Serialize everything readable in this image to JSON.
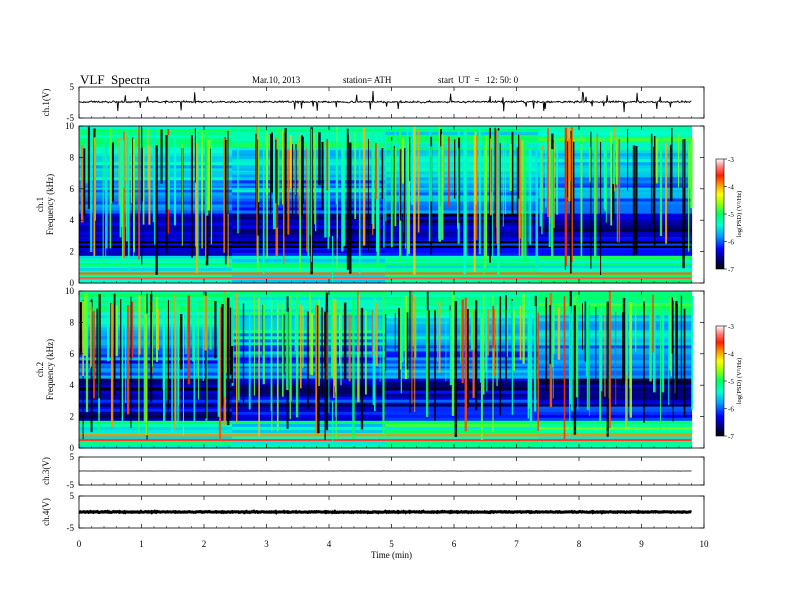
{
  "header": {
    "title": "VLF  Spectra",
    "date": "Mar.10, 2013",
    "station": "station= ATH",
    "start_ut": "start  UT  =   12: 50: 0"
  },
  "chart_data": [
    {
      "type": "line",
      "id": "ch1-waveform",
      "ylabel": "ch.1(V)",
      "ylim": [
        -5,
        5
      ],
      "y_ticks": [
        "5",
        "-5"
      ],
      "xlim": [
        0,
        10
      ],
      "data_extent_min": [
        0,
        9.8
      ],
      "description_values": {
        "baseline_v": 0.2,
        "typical_amplitude_v": 0.6,
        "spike_max_v": 3.5
      }
    },
    {
      "type": "heatmap",
      "id": "ch1-spectrogram",
      "ylabel": "ch.1 Frequency  (kHz)",
      "ylim": [
        0,
        10
      ],
      "y_ticks": [
        "0",
        "2",
        "4",
        "6",
        "8",
        "10"
      ],
      "xlim": [
        0,
        10
      ],
      "data_extent_min": [
        0,
        9.8
      ],
      "colorbar": {
        "label": "log(PSD) (V²/Hz)",
        "range": [
          -7,
          -3
        ],
        "ticks": [
          "-3",
          "-4",
          "-5",
          "-6",
          "-7"
        ],
        "colors": [
          "#000000",
          "#000080",
          "#0000ff",
          "#00a0ff",
          "#00ffd0",
          "#00ff60",
          "#a0ff00",
          "#ffff00",
          "#ffa000",
          "#ff2000",
          "#ff8080",
          "#ffffff"
        ]
      },
      "bands_khz": [
        {
          "f": 0.3,
          "level": -3.4
        },
        {
          "f": 0.6,
          "level": -3.8
        },
        {
          "f": 1.2,
          "level": -5.0
        },
        {
          "f": 2.3,
          "level": -7.0
        },
        {
          "f": 2.6,
          "level": -7.0
        },
        {
          "f": 3.0,
          "level": -6.5
        },
        {
          "f": 6.0,
          "level": -5.6
        },
        {
          "f": 7.0,
          "level": -5.6
        }
      ],
      "station_change_min": 4.05
    },
    {
      "type": "heatmap",
      "id": "ch2-spectrogram",
      "ylabel": "ch.2 Frequency  (kHz)",
      "ylim": [
        0,
        10
      ],
      "y_ticks": [
        "0",
        "2",
        "4",
        "6",
        "8",
        "10"
      ],
      "xlim": [
        0,
        10
      ],
      "data_extent_min": [
        0,
        9.8
      ],
      "colorbar": {
        "label": "log(PSD) (V²/Hz)",
        "range": [
          -7,
          -3
        ],
        "ticks": [
          "-3",
          "-4",
          "-5",
          "-6",
          "-7"
        ]
      },
      "bands_khz": [
        {
          "f": 0.5,
          "level": -3.5
        },
        {
          "f": 0.8,
          "level": -3.9
        },
        {
          "f": 1.6,
          "level": -5.0
        },
        {
          "f": 2.7,
          "level": -6.8
        },
        {
          "f": 5.0,
          "level": -5.8
        }
      ],
      "station_change_min": 4.05
    },
    {
      "type": "line",
      "id": "ch3-waveform",
      "ylabel": "ch.3(V)",
      "ylim": [
        -5,
        5
      ],
      "y_ticks": [
        "5",
        "-5"
      ],
      "xlim": [
        0,
        10
      ],
      "data_extent_min": [
        0,
        9.8
      ],
      "description_values": {
        "baseline_v": 0.0,
        "typical_amplitude_v": 0.05
      }
    },
    {
      "type": "line",
      "id": "ch4-waveform",
      "ylabel": "ch.4(V)",
      "ylim": [
        -5,
        5
      ],
      "y_ticks": [
        "5",
        "-5"
      ],
      "xlim": [
        0,
        10
      ],
      "data_extent_min": [
        0,
        9.8
      ],
      "xlabel": "Time  (min)",
      "x_ticks": [
        "0",
        "1",
        "2",
        "3",
        "4",
        "5",
        "6",
        "7",
        "8",
        "9",
        "10"
      ],
      "description_values": {
        "baseline_v": 0.0,
        "typical_amplitude_v": 0.3
      }
    }
  ]
}
